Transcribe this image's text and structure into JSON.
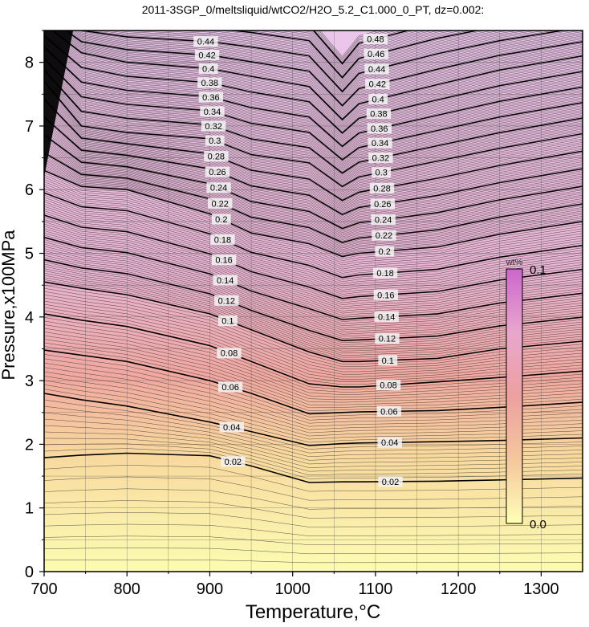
{
  "chart_data": {
    "type": "contour",
    "title": "2011-3SGP_0/meltsliquid/wtCO2/H2O_5.2_C1.000_0_PT, dz=0.002:",
    "xlabel": "Temperature,°C",
    "ylabel": "Pressure,x100MPa",
    "xlim": [
      700,
      1350
    ],
    "ylim": [
      0,
      8.5
    ],
    "x_ticks": [
      700,
      800,
      900,
      1000,
      1100,
      1200,
      1300
    ],
    "y_ticks": [
      0,
      1,
      2,
      3,
      4,
      5,
      6,
      7,
      8
    ],
    "z_interval_minor": 0.002,
    "z_interval_major": 0.02,
    "contour_labels": {
      "left_column": [
        "0.02",
        "0.04",
        "0.06",
        "0.08",
        "0.1",
        "0.12",
        "0.14",
        "0.16",
        "0.18",
        "0.2",
        "0.22",
        "0.24",
        "0.26",
        "0.28",
        "0.3",
        "0.32",
        "0.34",
        "0.36",
        "0.38",
        "0.4",
        "0.42",
        "0.44",
        "0.46",
        "0.48"
      ],
      "right_column": [
        "0.02",
        "0.04",
        "0.06",
        "0.08",
        "0.1",
        "0.12",
        "0.14",
        "0.16",
        "0.18",
        "0.2",
        "0.22",
        "0.24",
        "0.26",
        "0.28",
        "0.3",
        "0.32",
        "0.34",
        "0.36",
        "0.38",
        "0.4",
        "0.42",
        "0.44",
        "0.46",
        "0.48"
      ]
    },
    "control_points_T": [
      700,
      745,
      800,
      900,
      950,
      1020,
      1060,
      1080,
      1175,
      1250,
      1350
    ],
    "control_points_P_by_z": {
      "0.02": [
        1.79,
        1.83,
        1.86,
        1.82,
        1.66,
        1.4,
        1.41,
        1.41,
        1.42,
        1.44,
        1.47
      ],
      "0.04": [
        2.8,
        2.7,
        2.6,
        2.35,
        2.2,
        1.98,
        2.01,
        2.02,
        2.04,
        2.06,
        2.1
      ],
      "0.06": [
        3.48,
        3.4,
        3.3,
        3.0,
        2.8,
        2.48,
        2.5,
        2.51,
        2.53,
        2.58,
        2.66
      ],
      "0.08": [
        4.05,
        3.95,
        3.85,
        3.55,
        3.3,
        2.95,
        2.9,
        2.9,
        2.98,
        3.05,
        3.15
      ],
      "0.1": [
        4.55,
        4.45,
        4.35,
        4.05,
        3.8,
        3.45,
        3.3,
        3.3,
        3.35,
        3.5,
        3.62
      ],
      "0.2": [
        6.3,
        6.05,
        6.0,
        5.62,
        5.32,
        5.15,
        4.95,
        5.0,
        5.1,
        5.3,
        5.5
      ],
      "0.3": [
        7.7,
        7.0,
        6.9,
        6.8,
        6.55,
        6.42,
        6.05,
        6.2,
        6.45,
        6.65,
        6.88
      ],
      "0.4": [
        8.6,
        8.15,
        8.0,
        7.9,
        7.78,
        7.62,
        7.1,
        7.35,
        7.65,
        7.88,
        8.1
      ],
      "0.48": [
        9.2,
        8.85,
        8.8,
        8.75,
        8.7,
        8.58,
        7.98,
        8.3,
        8.62,
        8.8,
        9.0
      ]
    },
    "colorbar": {
      "label": "wt%",
      "min_label": "0.0",
      "max_label": "0.1",
      "colors": [
        "#ffffb8",
        "#f5c79c",
        "#eda0a0",
        "#e8a7cc",
        "#cc66cc"
      ]
    },
    "background_colors": {
      "low": "#fcfcb2",
      "mid_low": "#f8d89e",
      "mid": "#f0a8a0",
      "mid_high": "#e8b4d2",
      "high": "#ebc6eb"
    },
    "legend_position": "center-right",
    "grid": true
  }
}
